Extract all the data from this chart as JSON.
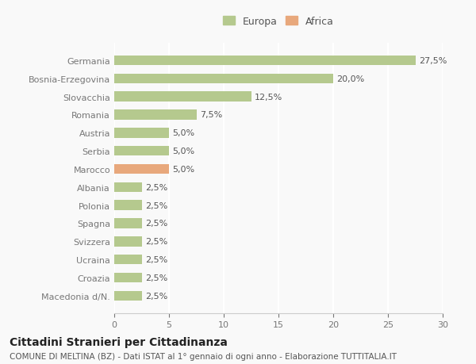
{
  "categories": [
    "Macedonia d/N.",
    "Croazia",
    "Ucraina",
    "Svizzera",
    "Spagna",
    "Polonia",
    "Albania",
    "Marocco",
    "Serbia",
    "Austria",
    "Romania",
    "Slovacchia",
    "Bosnia-Erzegovina",
    "Germania"
  ],
  "values": [
    2.5,
    2.5,
    2.5,
    2.5,
    2.5,
    2.5,
    2.5,
    5.0,
    5.0,
    5.0,
    7.5,
    12.5,
    20.0,
    27.5
  ],
  "colors": [
    "#b5c98e",
    "#b5c98e",
    "#b5c98e",
    "#b5c98e",
    "#b5c98e",
    "#b5c98e",
    "#b5c98e",
    "#e8a87c",
    "#b5c98e",
    "#b5c98e",
    "#b5c98e",
    "#b5c98e",
    "#b5c98e",
    "#b5c98e"
  ],
  "labels": [
    "2,5%",
    "2,5%",
    "2,5%",
    "2,5%",
    "2,5%",
    "2,5%",
    "2,5%",
    "5,0%",
    "5,0%",
    "5,0%",
    "7,5%",
    "12,5%",
    "20,0%",
    "27,5%"
  ],
  "europa_color": "#b5c98e",
  "africa_color": "#e8a87c",
  "xlim": [
    0,
    30
  ],
  "xticks": [
    0,
    5,
    10,
    15,
    20,
    25,
    30
  ],
  "title": "Cittadini Stranieri per Cittadinanza",
  "subtitle": "COMUNE DI MELTINA (BZ) - Dati ISTAT al 1° gennaio di ogni anno - Elaborazione TUTTITALIA.IT",
  "bg_color": "#f9f9f9",
  "bar_height": 0.55,
  "label_fontsize": 8,
  "title_fontsize": 10,
  "subtitle_fontsize": 7.5,
  "tick_fontsize": 8,
  "legend_fontsize": 9
}
